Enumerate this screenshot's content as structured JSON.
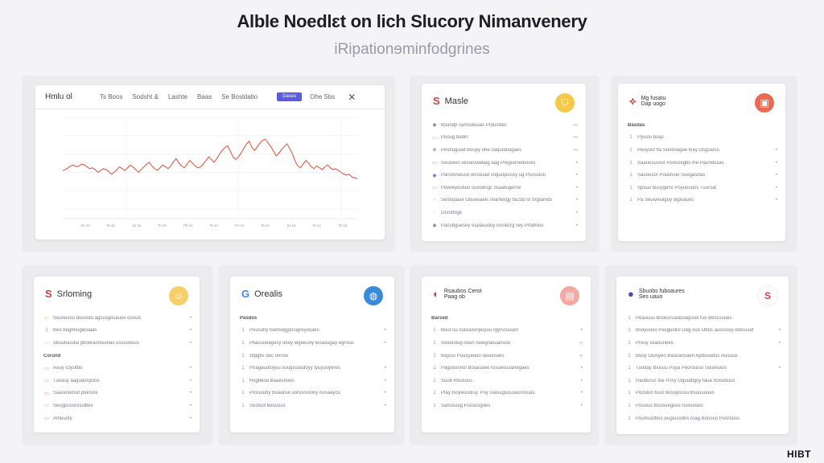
{
  "page": {
    "title": "Alble Noedlɛt on lich Slucory Nimanvenery",
    "subtitle": "iRipationɘminfodgrines"
  },
  "chart_card": {
    "title": "Hmlu ol",
    "nav": [
      "Ts Boos",
      "Sodsht &",
      "Lashte",
      "Baas",
      "Se Bosldatio"
    ],
    "button": "Dases",
    "more": "Ohe Sbs",
    "close_icon": "close-icon",
    "accent": "#5b5be0",
    "line_color": "#e05a45"
  },
  "chart_data": {
    "type": "line",
    "title": "",
    "xlabel": "",
    "ylabel": "",
    "ylim": [
      0,
      100
    ],
    "x": [
      0,
      1,
      2,
      3,
      4,
      5,
      6,
      7,
      8,
      9,
      10,
      11,
      12,
      13,
      14,
      15,
      16,
      17,
      18,
      19,
      20,
      21,
      22,
      23,
      24,
      25,
      26,
      27,
      28,
      29,
      30,
      31,
      32,
      33,
      34,
      35,
      36,
      37,
      38,
      39,
      40,
      41,
      42,
      43,
      44,
      45,
      46,
      47,
      48,
      49,
      50,
      51,
      52,
      53,
      54,
      55,
      56,
      57,
      58,
      59,
      60,
      61,
      62,
      63,
      64,
      65,
      66,
      67,
      68,
      69,
      70,
      71,
      72,
      73,
      74,
      75,
      76,
      77,
      78,
      79,
      80,
      81,
      82,
      83,
      84,
      85,
      86,
      87,
      88,
      89,
      90,
      91,
      92,
      93,
      94,
      95,
      96,
      97,
      98,
      99,
      100,
      101,
      102,
      103,
      104,
      105,
      106,
      107,
      108,
      109
    ],
    "series": [
      {
        "values": [
          42,
          43,
          45,
          47,
          48,
          46,
          47,
          49,
          48,
          46,
          44,
          45,
          43,
          40,
          42,
          44,
          43,
          41,
          38,
          40,
          43,
          46,
          44,
          42,
          45,
          48,
          46,
          43,
          40,
          43,
          46,
          49,
          51,
          47,
          44,
          42,
          45,
          48,
          46,
          44,
          47,
          52,
          55,
          50,
          47,
          45,
          49,
          53,
          50,
          47,
          45,
          46,
          49,
          53,
          57,
          54,
          51,
          55,
          60,
          64,
          67,
          69,
          63,
          57,
          54,
          57,
          61,
          66,
          71,
          74,
          67,
          64,
          68,
          72,
          75,
          76,
          72,
          68,
          63,
          58,
          61,
          65,
          68,
          71,
          66,
          60,
          52,
          47,
          45,
          49,
          53,
          50,
          46,
          44,
          47,
          45,
          43,
          46,
          48,
          45,
          43,
          44,
          42,
          40,
          38,
          37,
          38,
          35,
          34,
          33
        ]
      }
    ],
    "x_ticks": [
      "Se 10",
      "Ta 4p",
      "1a 1a",
      "Ts 10",
      "Pb 1s",
      "Ta 1s",
      "Po 1s",
      "Ta 1s",
      "1a 1a",
      "Ta 1s",
      "Th 10"
    ]
  },
  "cards": [
    {
      "title": "Masle",
      "logo": "S",
      "logo_color": "#d93a3a",
      "badge_color": "#f5c84a",
      "badge_icon": "shield-icon",
      "badge_glyph": "⛉",
      "rows": [
        {
          "icon": "◉",
          "color": "#7a7aa8",
          "text": "Bsundp cumiseuuas Prousitan",
          "value": "›››"
        },
        {
          "icon": "▭",
          "color": "#999",
          "text": "Puoug bedin",
          "value": "›››"
        },
        {
          "icon": "⊕",
          "color": "#7a7aa8",
          "text": "Poshuguod Boupy ohe oaquodiogaes",
          "value": "›››"
        },
        {
          "icon": "▭",
          "color": "#7a7aa8",
          "text": "Souseun sesoruwetiag aag Preguonedioses",
          "value": "•"
        },
        {
          "icon": "◉",
          "color": "#6a6ad8",
          "text": "Paroovseusd onoouad snguuyiusoy ug Puosulou",
          "value": "•"
        },
        {
          "icon": "▭",
          "color": "#999",
          "text": "Powreyoutiuo ouvodngc osaatugerne",
          "value": "•"
        },
        {
          "icon": "○",
          "color": "#e8a13a",
          "text": "Sestopaue Gbuesaels snarfiergy facstd lo Srgtamds",
          "value": "•"
        },
        {
          "icon": "◌",
          "color": "#999",
          "text": "Osrutlnge",
          "value": "•"
        },
        {
          "icon": "◉",
          "color": "#7a7aa8",
          "text": "Pacubguesey espauuduy ruroecrg Iwy Prodhios",
          "value": "•"
        }
      ]
    },
    {
      "title": "Mg fusatu\nDap uogo",
      "logo": "⟡",
      "logo_color": "#d93a3a",
      "badge_color": "#ec6a52",
      "badge_icon": "monitor-icon",
      "badge_glyph": "▣",
      "rows": [
        {
          "section": true,
          "text": "Basdas"
        },
        {
          "icon": "1",
          "color": "#999",
          "text": "Pyuslu bsap",
          "value": ""
        },
        {
          "icon": "1",
          "color": "#999",
          "text": "Peoyuuf fla Sonbsegae lnay Osgsarss",
          "value": "•"
        },
        {
          "icon": "1",
          "color": "#999",
          "text": "Saauusuusst Ponosegbs lhe Paundusas",
          "value": "•"
        },
        {
          "icon": "1",
          "color": "#999",
          "text": "Sauousor Poushoio Suegasdas",
          "value": "•"
        },
        {
          "icon": "1",
          "color": "#999",
          "text": "Spsuu buuygens Poyuouuns Tuursat",
          "value": "•"
        },
        {
          "icon": "1",
          "color": "#999",
          "text": "Pa Seuiveiulguy olgivaues",
          "value": "•"
        }
      ]
    },
    {
      "title": "Srloming",
      "logo": "S",
      "logo_color": "#d93a3a",
      "badge_color": "#f5cf6a",
      "badge_icon": "user-group-icon",
      "badge_glyph": "☺",
      "rows": [
        {
          "icon": "▭",
          "color": "#e8c24a",
          "text": "Sounuoso bsuoutu agcusgosauuv ounud",
          "value": "•"
        },
        {
          "icon": "1",
          "color": "#999",
          "text": "Beo bogbnugiesaias",
          "value": "•"
        },
        {
          "icon": "▭",
          "color": "#e8c24a",
          "text": "Sbuutuuutia pboeraonsuinas usssuoous",
          "value": "•"
        },
        {
          "section": true,
          "text": "Corund"
        },
        {
          "icon": "▭",
          "color": "#5a8ad8",
          "text": "Aouy coyutbo",
          "value": "•"
        },
        {
          "icon": "▭",
          "color": "#6ac26a",
          "text": "Tuoauy aaguaorgcios",
          "value": "•"
        },
        {
          "icon": "▭",
          "color": "#d85a6a",
          "text": "Saaooseosit poesosl",
          "value": "•"
        },
        {
          "icon": "▭",
          "color": "#b47ad8",
          "text": "Seugpusorosulbes",
          "value": "•"
        },
        {
          "icon": "▭",
          "color": "#7a7aa8",
          "text": "Artleuoty",
          "value": "•"
        }
      ]
    },
    {
      "title": "Orealis",
      "logo": "G",
      "logo_color": "#4285f4",
      "badge_color": "#3b8ad8",
      "badge_icon": "globe-icon",
      "badge_glyph": "◍",
      "rows": [
        {
          "section": true,
          "text": "Pasdos"
        },
        {
          "icon": "1",
          "color": "#999",
          "text": "Pousuhy toebsegypcugreyucaes",
          "value": "•"
        },
        {
          "icon": "1",
          "color": "#999",
          "text": "Ptiacuueagusy uboy elgoeuoy leoasugay egnsus",
          "value": "•"
        },
        {
          "icon": "1",
          "color": "#999",
          "text": "Stpgbs doc unnse",
          "value": ""
        },
        {
          "icon": "1",
          "color": "#999",
          "text": "Phagauutoyuu sougsuasdoyy tyuyuuyeres",
          "value": "•"
        },
        {
          "icon": "1",
          "color": "#999",
          "text": "Hsgbeoa Baaesnues",
          "value": "•"
        },
        {
          "icon": "1",
          "color": "#999",
          "text": "Possuuby Boaurue uorusrusony ousaayos",
          "value": "•"
        },
        {
          "icon": "1",
          "color": "#999",
          "text": "Sestuol Besusus",
          "value": "•"
        }
      ]
    },
    {
      "title": "Rsaubos Cerot\nPaag ob",
      "logo": "◐",
      "logo_color": "#d93a3a",
      "badge_color": "#f5a8a0",
      "badge_icon": "document-icon",
      "badge_glyph": "▤",
      "rows": [
        {
          "section": true,
          "text": "Barsed"
        },
        {
          "icon": "1",
          "color": "#999",
          "text": "Buut uu ouuuusinpuyuu rgyrscuuuor",
          "value": "•"
        },
        {
          "icon": "1",
          "color": "#999",
          "text": "Soloostug ooun lsuegrauuansoo",
          "value": "››"
        },
        {
          "icon": "1",
          "color": "#999",
          "text": "Bayciu Pousyaouo lasuesues",
          "value": "››"
        },
        {
          "icon": "1",
          "color": "#999",
          "text": "Pagusuonol Bouasaeo rusuesuuanegaes",
          "value": "•"
        },
        {
          "icon": "1",
          "color": "#999",
          "text": "Suub Roususs",
          "value": "•"
        },
        {
          "icon": "1",
          "color": "#999",
          "text": "Ptay tsoyeuuoluy. Puy ruasugsuuuuorusuas",
          "value": "•"
        },
        {
          "icon": "1",
          "color": "#999",
          "text": "Sanusuug Pussusgues",
          "value": "•"
        }
      ]
    },
    {
      "title": "Sbuobs fuboaures\nSes uauo",
      "logo": "●",
      "logo_color": "#4a4ab8",
      "badge_color": "#ffffff",
      "badge_icon": "brand-s-icon",
      "badge_glyph": "S",
      "rows": [
        {
          "icon": "1",
          "color": "#999",
          "text": "Peauuuu Bsousruasbuogusoi fuo Besssoues",
          "value": ""
        },
        {
          "icon": "1",
          "color": "#999",
          "text": "Bsoyuuuo Pasguolisl Deg ouo Obus ausnusiy odouuud",
          "value": "•"
        },
        {
          "icon": "1",
          "color": "#999",
          "text": "Prouy seaounees",
          "value": "•"
        },
        {
          "icon": "1",
          "color": "#999",
          "text": "Buoy Gluoyeo Bauuansaen Apdouudss Ausuuo",
          "value": ""
        },
        {
          "icon": "1",
          "color": "#999",
          "text": "Tuoday Biusou Poya Peorouuiu Souesuuo",
          "value": "•"
        },
        {
          "icon": "1",
          "color": "#999",
          "text": "Pauburus fue Posy Oguudlgoy taua Sooubuus",
          "value": ""
        },
        {
          "icon": "1",
          "color": "#999",
          "text": "Poosloo fouo boouyousu Bsuuuuues",
          "value": ""
        },
        {
          "icon": "1",
          "color": "#999",
          "text": "Pouuuu Bousuegous ruosulouo",
          "value": ""
        },
        {
          "icon": "1",
          "color": "#999",
          "text": "Poumuolboo Augiusodns roag Bonoso Puorduss",
          "value": ""
        }
      ]
    }
  ],
  "brand": "HIBT"
}
